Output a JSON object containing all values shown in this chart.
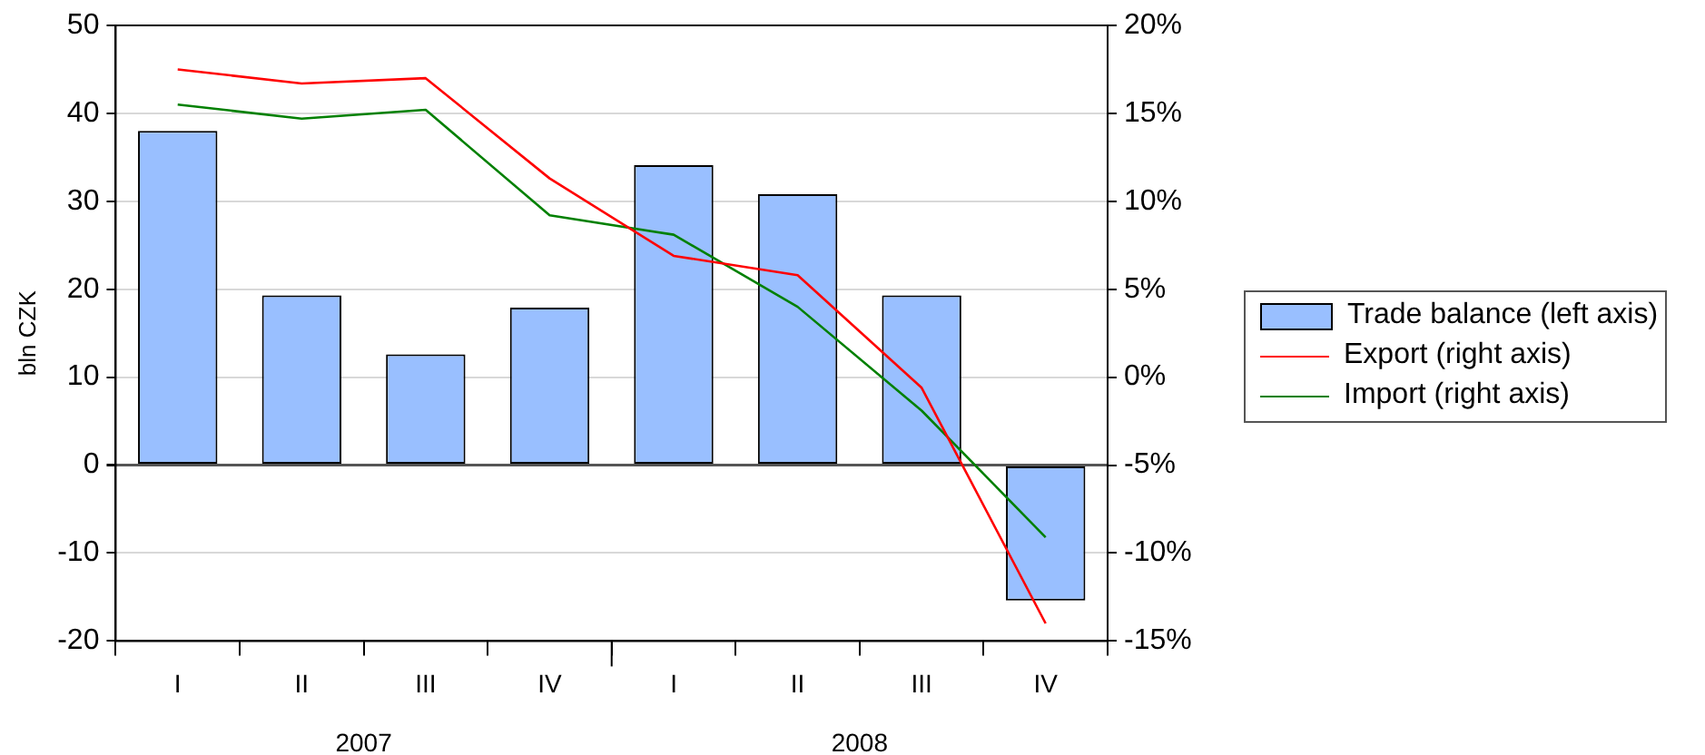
{
  "chart_data": {
    "type": "bar",
    "ylabel": "bln CZK",
    "categories": [
      "I",
      "II",
      "III",
      "IV",
      "I",
      "II",
      "III",
      "IV"
    ],
    "series": [
      {
        "name": "Trade balance (left axis)",
        "type": "bar",
        "color": "#99bfff",
        "values": [
          38,
          19.3,
          12.6,
          17.9,
          34.1,
          30.8,
          19.3,
          -15.4
        ]
      },
      {
        "name": "Export (right axis)",
        "type": "line",
        "axis": "y2",
        "color": "#ff0000",
        "values": [
          17.5,
          16.7,
          17.0,
          11.3,
          6.9,
          5.8,
          -0.6,
          -14.0
        ]
      },
      {
        "name": "Import (right axis)",
        "type": "line",
        "axis": "y2",
        "color": "#008000",
        "values": [
          15.5,
          14.7,
          15.2,
          9.2,
          8.1,
          4.0,
          -1.9,
          -9.1
        ]
      }
    ],
    "ylim": [
      -20,
      50
    ],
    "yticks": [
      -20,
      -10,
      0,
      10,
      20,
      30,
      40,
      50
    ],
    "y2lim": [
      -15,
      20
    ],
    "y2ticks": [
      {
        "value": -15,
        "label": "-15%"
      },
      {
        "value": -10,
        "label": "-10%"
      },
      {
        "value": -5,
        "label": "-5%"
      },
      {
        "value": 0,
        "label": "0%"
      },
      {
        "value": 5,
        "label": "5%"
      },
      {
        "value": 10,
        "label": "10%"
      },
      {
        "value": 15,
        "label": "15%"
      },
      {
        "value": 20,
        "label": "20%"
      }
    ],
    "annotations": [
      "2007",
      "2008"
    ],
    "grid": "y",
    "legend": "right",
    "marker": "none"
  }
}
